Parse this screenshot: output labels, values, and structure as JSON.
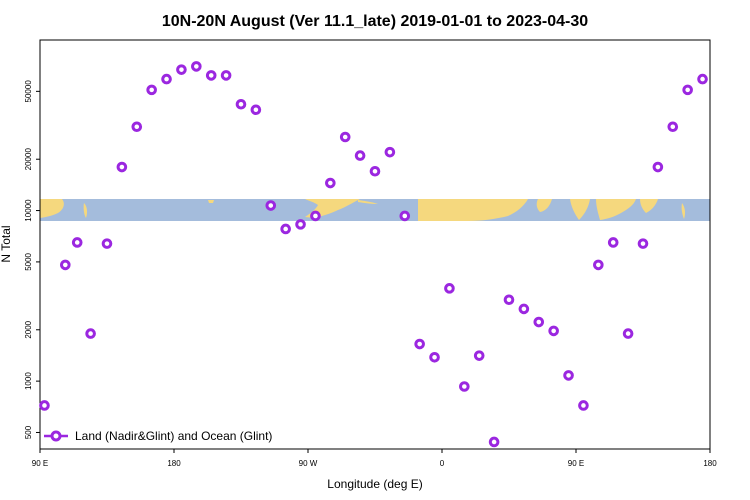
{
  "chart_data": {
    "type": "scatter",
    "title": "10N-20N August (Ver 11.1_late)   2019-01-01 to 2023-04-30",
    "xlabel": "Longitude (deg E)",
    "ylabel": "N Total",
    "y_scale": "log",
    "xlim": [
      90,
      540
    ],
    "ylim": [
      400,
      100000
    ],
    "x_ticks": [
      {
        "value": 90,
        "label": "90 E"
      },
      {
        "value": 180,
        "label": "180"
      },
      {
        "value": 270,
        "label": "90 W"
      },
      {
        "value": 360,
        "label": "0"
      },
      {
        "value": 450,
        "label": "90 E"
      },
      {
        "value": 540,
        "label": "180"
      }
    ],
    "y_ticks": [
      {
        "value": 500,
        "label": "500"
      },
      {
        "value": 1000,
        "label": "1000"
      },
      {
        "value": 2000,
        "label": "2000"
      },
      {
        "value": 5000,
        "label": "5000"
      },
      {
        "value": 10000,
        "label": "10000"
      },
      {
        "value": 20000,
        "label": "20000"
      },
      {
        "value": 50000,
        "label": "50000"
      }
    ],
    "grid": false,
    "legend_position": "bottom-left",
    "series": [
      {
        "name": "Land (Nadir&Glint) and Ocean (Glint)",
        "color": "#9b27e0",
        "marker": "open-circle",
        "x": [
          93,
          107,
          115,
          124,
          135,
          145,
          155,
          165,
          175,
          185,
          195,
          205,
          215,
          225,
          235,
          245,
          255,
          265,
          275,
          285,
          295,
          305,
          315,
          325,
          335,
          345,
          355,
          365,
          375,
          385,
          395,
          405,
          415,
          425,
          435,
          445,
          455,
          465,
          475,
          485,
          495,
          505,
          515,
          525,
          535
        ],
        "y": [
          720,
          4800,
          6500,
          1900,
          6400,
          18000,
          31000,
          51000,
          59000,
          67000,
          70000,
          62000,
          62000,
          42000,
          39000,
          10700,
          7800,
          8300,
          9300,
          14500,
          27000,
          21000,
          17000,
          22000,
          9300,
          1650,
          1380,
          3500,
          930,
          1410,
          440,
          3000,
          2650,
          2220,
          1970,
          1080,
          720,
          4800,
          6500,
          1900,
          6400,
          18000,
          31000,
          51000,
          59000
        ]
      }
    ]
  },
  "map_band": {
    "ocean_color": "#a4bcdc",
    "land_color": "#f5d87e"
  }
}
